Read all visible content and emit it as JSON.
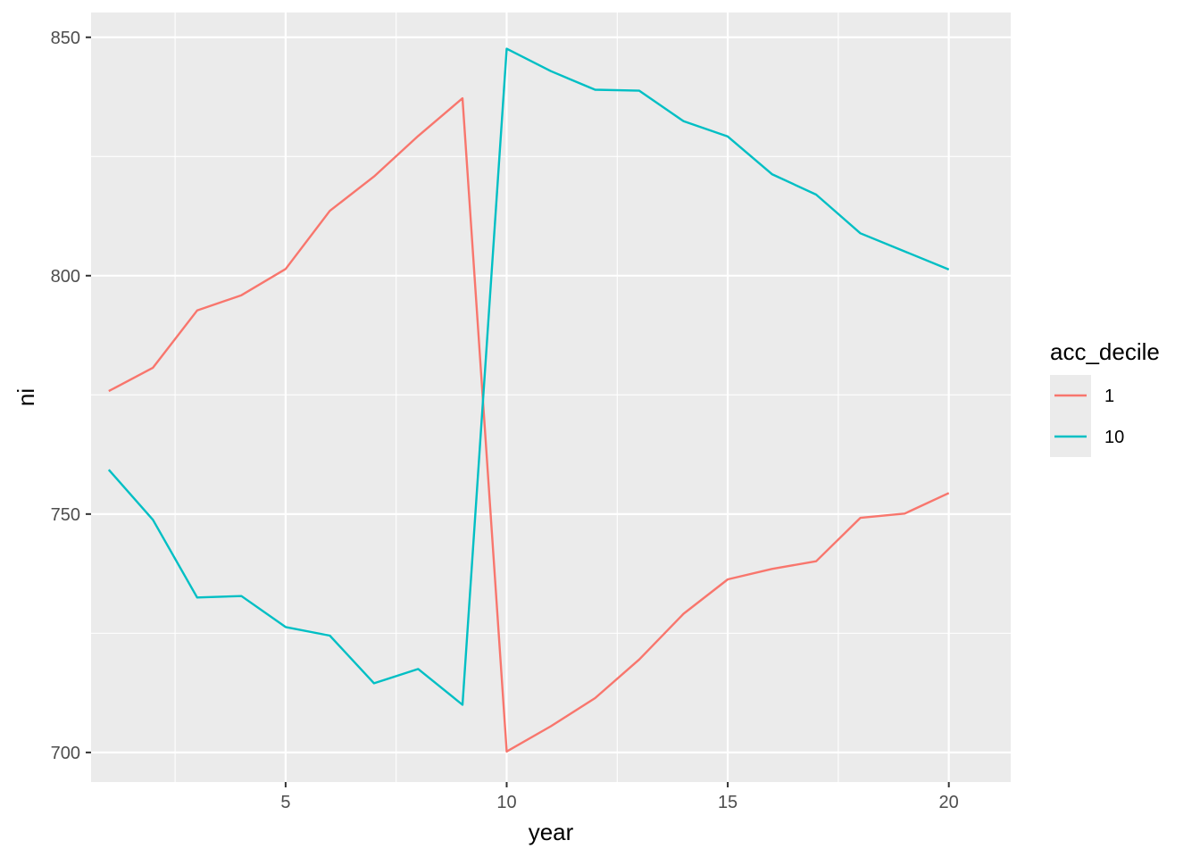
{
  "chart_data": {
    "type": "line",
    "title": "",
    "xlabel": "year",
    "ylabel": "ni",
    "xlim": [
      0.6,
      21.4
    ],
    "ylim": [
      693.8,
      855.2
    ],
    "x_ticks": [
      5,
      10,
      15,
      20
    ],
    "x_tick_labels": [
      "5",
      "10",
      "15",
      "20"
    ],
    "x_minor_ticks": [
      2.5,
      7.5,
      12.5,
      17.5
    ],
    "y_ticks": [
      700,
      750,
      800,
      850
    ],
    "y_tick_labels": [
      "700",
      "750",
      "800",
      "850"
    ],
    "y_minor_ticks": [
      725,
      775,
      825
    ],
    "grid": true,
    "legend": {
      "title": "acc_decile",
      "position": "right"
    },
    "x": [
      1,
      2,
      3,
      4,
      5,
      6,
      7,
      8,
      9,
      10,
      11,
      12,
      13,
      14,
      15,
      16,
      17,
      18,
      19,
      20
    ],
    "series": [
      {
        "name": "1",
        "color": "#F8766D",
        "values": [
          775.8,
          780.7,
          792.7,
          795.9,
          801.4,
          813.6,
          820.8,
          829.3,
          837.2,
          700.2,
          705.5,
          711.4,
          719.5,
          729.1,
          736.3,
          738.5,
          740.1,
          749.2,
          750.1,
          754.4
        ]
      },
      {
        "name": "10",
        "color": "#00BFC4",
        "values": [
          759.3,
          748.8,
          732.5,
          732.8,
          726.3,
          724.5,
          714.5,
          717.5,
          710.0,
          847.6,
          842.9,
          839.0,
          838.8,
          832.4,
          829.2,
          821.3,
          817.0,
          808.9,
          805.1,
          801.3
        ]
      }
    ]
  }
}
